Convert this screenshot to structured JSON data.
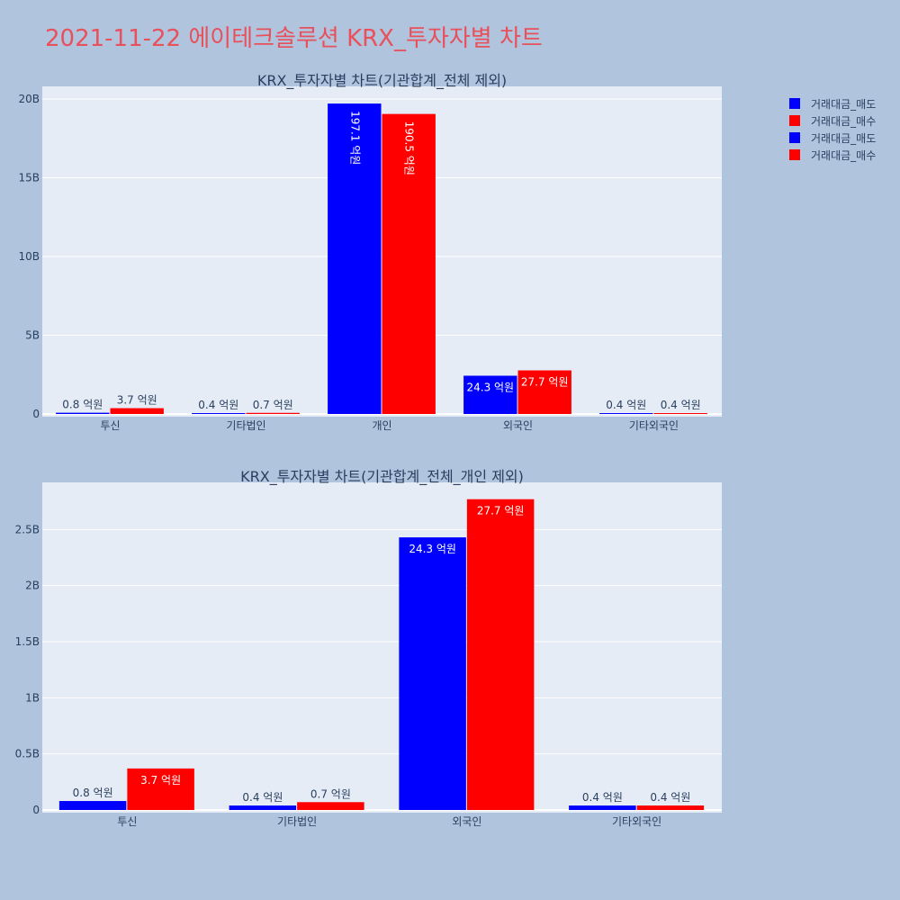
{
  "title": "2021-11-22 에이테크솔루션 KRX_투자자별 차트",
  "colors": {
    "page_bg": "#b0c4de",
    "plot_bg": "#e5ecf6",
    "title": "#e8505b",
    "sell": "#0000ff",
    "buy": "#ff0000",
    "axis_text": "#2a3f5f"
  },
  "legend": {
    "placement": "top-right",
    "items": [
      {
        "label": "거래대금_매도",
        "color": "#0000ff"
      },
      {
        "label": "거래대금_매수",
        "color": "#ff0000"
      },
      {
        "label": "거래대금_매도",
        "color": "#0000ff"
      },
      {
        "label": "거래대금_매수",
        "color": "#ff0000"
      }
    ]
  },
  "chart_data": [
    {
      "type": "bar",
      "title": "KRX_투자자별 차트(기관합계_전체 제외)",
      "categories": [
        "투신",
        "기타법인",
        "개인",
        "외국인",
        "기타외국인"
      ],
      "series": [
        {
          "name": "거래대금_매도",
          "color": "#0000ff",
          "values": [
            80000000,
            40000000,
            19710000000,
            2430000000,
            40000000
          ],
          "labels": [
            "0.8 억원",
            "0.4 억원",
            "197.1 억원",
            "24.3 억원",
            "0.4 억원"
          ]
        },
        {
          "name": "거래대금_매수",
          "color": "#ff0000",
          "values": [
            370000000,
            70000000,
            19050000000,
            2770000000,
            40000000
          ],
          "labels": [
            "3.7 억원",
            "0.7 억원",
            "190.5 억원",
            "27.7 억원",
            "0.4 억원"
          ]
        }
      ],
      "ylim": [
        0,
        20800000000
      ],
      "yticks": [
        0,
        5000000000,
        10000000000,
        15000000000,
        20000000000
      ],
      "ytick_labels": [
        "0",
        "5B",
        "10B",
        "15B",
        "20B"
      ],
      "grid": true
    },
    {
      "type": "bar",
      "title": "KRX_투자자별 차트(기관합계_전체_개인 제외)",
      "categories": [
        "투신",
        "기타법인",
        "외국인",
        "기타외국인"
      ],
      "series": [
        {
          "name": "거래대금_매도",
          "color": "#0000ff",
          "values": [
            80000000,
            40000000,
            2430000000,
            40000000
          ],
          "labels": [
            "0.8 억원",
            "0.4 억원",
            "24.3 억원",
            "0.4 억원"
          ]
        },
        {
          "name": "거래대금_매수",
          "color": "#ff0000",
          "values": [
            370000000,
            70000000,
            2770000000,
            40000000
          ],
          "labels": [
            "3.7 억원",
            "0.7 억원",
            "27.7 억원",
            "0.4 억원"
          ]
        }
      ],
      "ylim": [
        0,
        2920000000
      ],
      "yticks": [
        0,
        500000000,
        1000000000,
        1500000000,
        2000000000,
        2500000000
      ],
      "ytick_labels": [
        "0",
        "0.5B",
        "1B",
        "1.5B",
        "2B",
        "2.5B"
      ],
      "grid": true
    }
  ]
}
